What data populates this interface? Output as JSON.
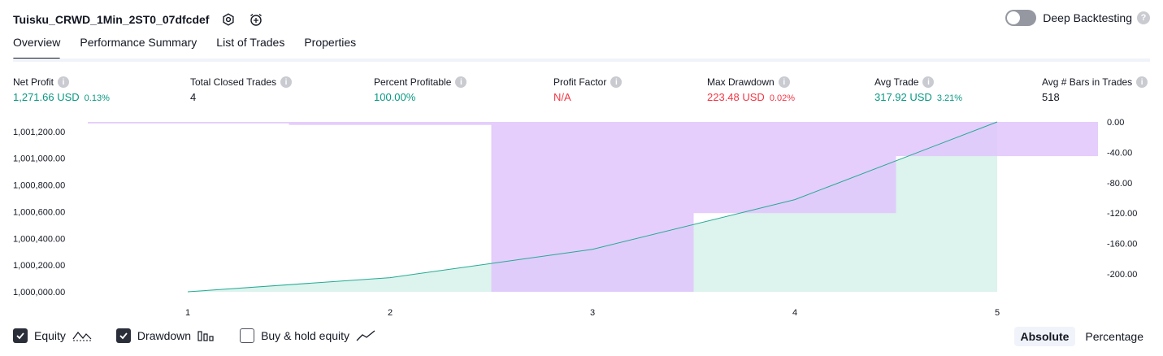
{
  "header": {
    "title": "Tuisku_CRWD_1Min_2ST0_07dfcdef",
    "settings_icon": "gear-icon",
    "alert_icon": "alarm-add-icon",
    "deep_backtesting_label": "Deep Backtesting",
    "deep_backtesting_on": false
  },
  "tabs": [
    {
      "label": "Overview",
      "active": true
    },
    {
      "label": "Performance Summary",
      "active": false
    },
    {
      "label": "List of Trades",
      "active": false
    },
    {
      "label": "Properties",
      "active": false
    }
  ],
  "stats": {
    "net_profit": {
      "label": "Net Profit",
      "value": "1,271.66 USD",
      "pct": "0.13%"
    },
    "total_closed_trades": {
      "label": "Total Closed Trades",
      "value": "4"
    },
    "percent_profitable": {
      "label": "Percent Profitable",
      "value": "100.00%"
    },
    "profit_factor": {
      "label": "Profit Factor",
      "value": "N/A"
    },
    "max_drawdown": {
      "label": "Max Drawdown",
      "value": "223.48 USD",
      "pct": "0.02%"
    },
    "avg_trade": {
      "label": "Avg Trade",
      "value": "317.92 USD",
      "pct": "3.21%"
    },
    "avg_bars": {
      "label": "Avg # Bars in Trades",
      "value": "518"
    }
  },
  "colors": {
    "positive": "#089981",
    "negative": "#f23645",
    "equity_line": "#22ab94",
    "equity_fill": "#d4f0e8",
    "drawdown_fill": "#e1c4fc"
  },
  "chart_data": {
    "type": "area",
    "x": [
      1,
      2,
      3,
      4,
      5
    ],
    "x_tick_labels": [
      "1",
      "2",
      "3",
      "4",
      "5"
    ],
    "left_axis": {
      "ticks": [
        "1,001,200.00",
        "1,001,000.00",
        "1,000,800.00",
        "1,000,600.00",
        "1,000,400.00",
        "1,000,200.00",
        "1,000,000.00"
      ],
      "ylim": [
        1000000,
        1001272
      ]
    },
    "right_axis": {
      "ticks": [
        "0.00",
        "-40.00",
        "-80.00",
        "-120.00",
        "-160.00",
        "-200.00"
      ],
      "ylim": [
        -223.48,
        0
      ]
    },
    "series": [
      {
        "type": "line",
        "axis": "left",
        "values": [
          1000000,
          1000106,
          1000318,
          1000690,
          1001272
        ]
      },
      {
        "type": "bar",
        "axis": "right",
        "values": [
          -2,
          -4,
          -223.48,
          -120,
          -45
        ]
      }
    ]
  },
  "legend": {
    "equity": {
      "label": "Equity",
      "checked": true
    },
    "drawdown": {
      "label": "Drawdown",
      "checked": true
    },
    "buy_hold": {
      "label": "Buy & hold equity",
      "checked": false
    }
  },
  "modes": {
    "absolute": "Absolute",
    "percentage": "Percentage",
    "active": "absolute"
  }
}
